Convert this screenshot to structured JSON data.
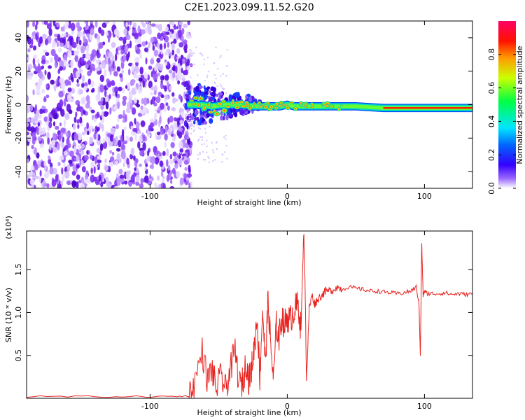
{
  "title": "C2E1.2023.099.11.52.G20",
  "chart_data": [
    {
      "type": "heatmap",
      "xlabel": "Height of straight line (km)",
      "ylabel": "Frequency (Hz)",
      "xlim": [
        -190,
        135
      ],
      "ylim": [
        -50,
        50
      ],
      "x_ticks": [
        -100,
        0,
        100
      ],
      "x_tick_labels": [
        "-100",
        "0",
        "100"
      ],
      "y_ticks": [
        -40,
        -20,
        0,
        20,
        40
      ],
      "y_tick_labels": [
        "-40",
        "-20",
        "0",
        "20",
        "40"
      ],
      "grid": false,
      "noise_region_x": [
        -190,
        -73
      ],
      "signal_trace": {
        "x": [
          -73,
          -65,
          -55,
          -45,
          -35,
          -25,
          -15,
          -5,
          0,
          5,
          15,
          30,
          50,
          70,
          90,
          110,
          135
        ],
        "y": [
          0,
          0,
          -1,
          0,
          0,
          -1,
          -1,
          -1,
          0,
          -1,
          -1,
          -1,
          -1,
          -2,
          -2,
          -2,
          -2
        ]
      },
      "colorbar": {
        "label": "Normalized spectral amplitude",
        "range": [
          0,
          1
        ],
        "ticks": [
          0.0,
          0.2,
          0.4,
          0.6,
          0.8
        ],
        "tick_labels": [
          "0.0",
          "0.2",
          "0.4",
          "0.6",
          "0.8"
        ],
        "colors": [
          "#ffffff",
          "#6600ff",
          "#0000ff",
          "#00ccff",
          "#00ff66",
          "#ccff00",
          "#ff6600",
          "#ff0000",
          "#ff0066"
        ]
      }
    },
    {
      "type": "line",
      "xlabel": "Height of straight line (km)",
      "ylabel": "SNR (10 * v/v)",
      "y_scale_note": "(x10⁴)",
      "xlim": [
        -190,
        135
      ],
      "ylim": [
        0,
        1.95
      ],
      "x_ticks": [
        -100,
        0,
        100
      ],
      "x_tick_labels": [
        "-100",
        "0",
        "100"
      ],
      "y_ticks": [
        0.5,
        1.0,
        1.5
      ],
      "y_tick_labels": [
        "0.5",
        "1.0",
        "1.5"
      ],
      "grid": false,
      "series": [
        {
          "color": "#e8231f",
          "x": [
            -190,
            -150,
            -110,
            -80,
            -72,
            -68,
            -62,
            -58,
            -55,
            -52,
            -48,
            -45,
            -42,
            -38,
            -35,
            -32,
            -30,
            -28,
            -26,
            -24,
            -22,
            -20,
            -18,
            -16,
            -14,
            -12,
            -10,
            -8,
            -6,
            -4,
            -2,
            0,
            2,
            4,
            6,
            8,
            10,
            12,
            13,
            14,
            16,
            18,
            20,
            22,
            25,
            28,
            32,
            36,
            40,
            45,
            50,
            55,
            60,
            65,
            70,
            75,
            80,
            85,
            90,
            94,
            96,
            97,
            98,
            99,
            100,
            102,
            105,
            110,
            115,
            120,
            125,
            130,
            135
          ],
          "y": [
            0.02,
            0.02,
            0.02,
            0.02,
            0.03,
            0.15,
            0.55,
            0.2,
            0.35,
            0.12,
            0.25,
            0.1,
            0.3,
            0.55,
            0.15,
            0.2,
            0.45,
            0.2,
            0.35,
            0.6,
            0.95,
            0.25,
            1.05,
            0.4,
            1.15,
            0.6,
            0.2,
            0.85,
            0.7,
            0.95,
            0.85,
            0.95,
            0.9,
            1.0,
            1.05,
            1.1,
            0.8,
            1.95,
            1.3,
            0.2,
            1.05,
            1.2,
            1.1,
            1.15,
            1.2,
            1.25,
            1.25,
            1.3,
            1.27,
            1.3,
            1.28,
            1.27,
            1.25,
            1.25,
            1.24,
            1.23,
            1.22,
            1.23,
            1.25,
            1.3,
            1.1,
            0.5,
            1.8,
            1.2,
            1.25,
            1.22,
            1.22,
            1.22,
            1.23,
            1.21,
            1.22,
            1.21,
            1.22
          ]
        }
      ]
    }
  ]
}
